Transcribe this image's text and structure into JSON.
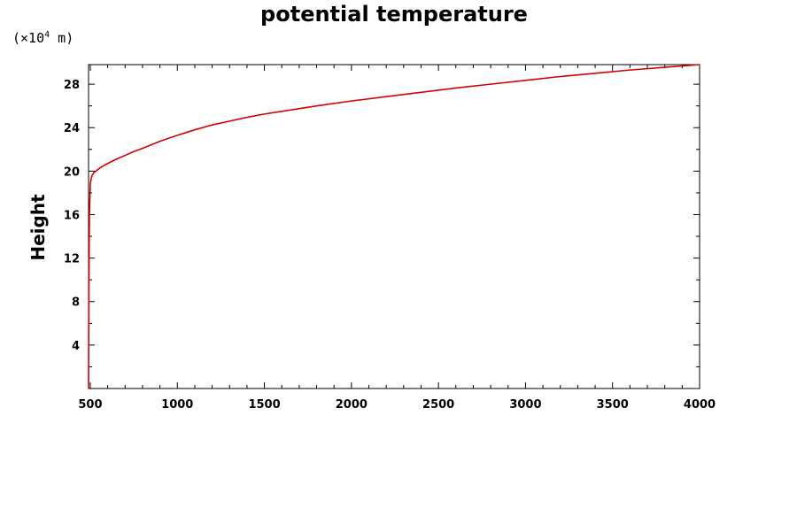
{
  "chart_data": {
    "type": "line",
    "title": "potential temperature",
    "ylabel": "Height",
    "xlabel": "",
    "y_scale_prefix": "(×10",
    "y_scale_exponent": "4",
    "y_scale_suffix": " m)",
    "xlim": [
      490,
      4000
    ],
    "ylim": [
      0,
      29.8
    ],
    "x_ticks": [
      500,
      1000,
      1500,
      2000,
      2500,
      3000,
      3500,
      4000
    ],
    "x_tick_labels": [
      "500",
      "1000",
      "1500",
      "2000",
      "2500",
      "3000",
      "3500",
      "4000"
    ],
    "x_minor_step": 100,
    "y_ticks": [
      4,
      8,
      12,
      16,
      20,
      24,
      28
    ],
    "y_tick_labels": [
      "4",
      "8",
      "12",
      "16",
      "20",
      "24",
      "28"
    ],
    "y_minor_step": 2,
    "grid": false,
    "series": [
      {
        "color": "#d40000",
        "x": [
          490,
          492,
          495,
          500,
          505,
          510,
          520,
          540,
          560,
          600,
          650,
          700,
          750,
          800,
          900,
          1000,
          1100,
          1200,
          1300,
          1400,
          1500,
          1600,
          1800,
          2000,
          2200,
          2400,
          2600,
          2800,
          3000,
          3200,
          3400,
          3600,
          3800,
          4000
        ],
        "y": [
          0.0,
          9.5,
          16.0,
          18.8,
          19.3,
          19.6,
          19.85,
          20.1,
          20.35,
          20.7,
          21.1,
          21.45,
          21.8,
          22.1,
          22.75,
          23.3,
          23.8,
          24.25,
          24.6,
          24.95,
          25.25,
          25.5,
          26.0,
          26.45,
          26.85,
          27.25,
          27.65,
          28.0,
          28.35,
          28.7,
          29.0,
          29.3,
          29.55,
          29.8
        ]
      }
    ]
  }
}
